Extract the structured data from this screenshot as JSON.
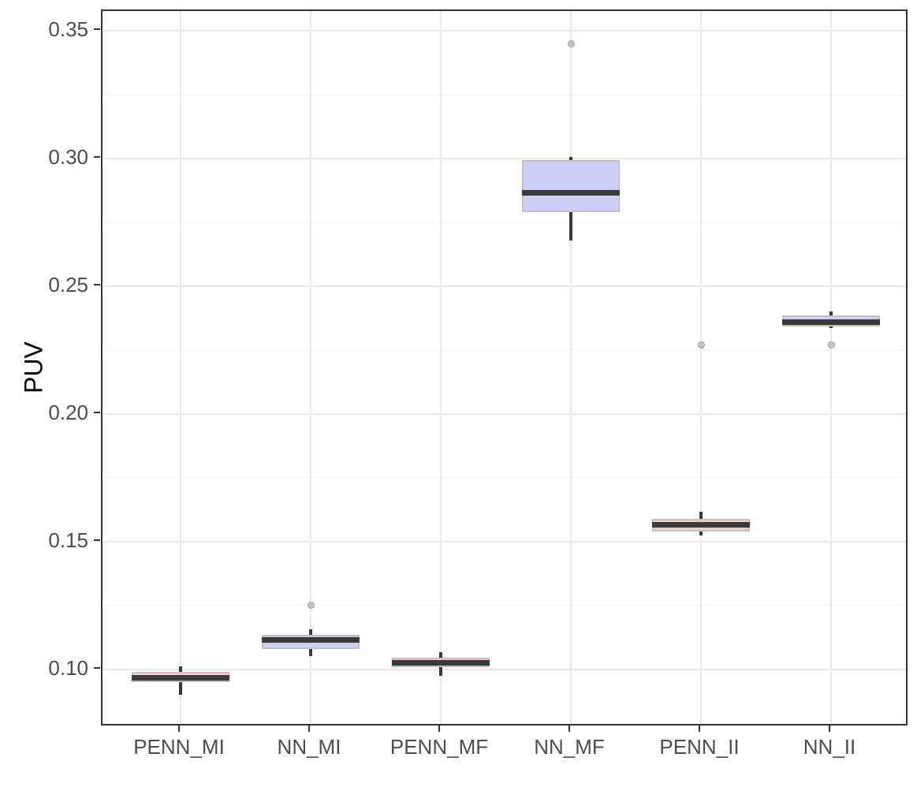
{
  "figure": {
    "background": "#FFFFFF",
    "panel_border_color": "#333333",
    "grid_major_color": "#E9E9E9",
    "grid_minor_color": "#F4F4F4",
    "axis_text_color": "#4D4D4D",
    "axis_title_color": "#000000",
    "box_border_color": "#C2C2C2",
    "median_color": "#3A3A3A",
    "whisker_color": "#3A3A3A",
    "outlier_fill": "#C4C4C4",
    "outlier_stroke": "#9E9E9E"
  },
  "chart_data": {
    "type": "boxplot",
    "title": "",
    "xlabel": "",
    "ylabel": "PUV",
    "legend_position": "none",
    "grid": true,
    "categories": [
      "PENN_MI",
      "NN_MI",
      "PENN_MF",
      "NN_MF",
      "PENN_II",
      "NN_II"
    ],
    "y_tick_values": [
      0.1,
      0.15,
      0.2,
      0.25,
      0.3,
      0.35
    ],
    "y_minor_tick_values": [
      0.125,
      0.175,
      0.225,
      0.275,
      0.325
    ],
    "ylim": [
      0.0773,
      0.3578
    ],
    "fill_colors": {
      "PENN": "#F9C8C6",
      "NN": "#CDCDF5"
    },
    "series": [
      {
        "category": "PENN_MI",
        "fill": "#F9C8C6",
        "whisker_low": 0.09,
        "q1": 0.0948,
        "median": 0.0965,
        "q3": 0.099,
        "whisker_high": 0.101,
        "outliers": []
      },
      {
        "category": "NN_MI",
        "fill": "#CDCDF5",
        "whisker_low": 0.105,
        "q1": 0.108,
        "median": 0.1115,
        "q3": 0.1135,
        "whisker_high": 0.1155,
        "outliers": [
          0.125
        ]
      },
      {
        "category": "PENN_MF",
        "fill": "#F9C8C6",
        "whisker_low": 0.0975,
        "q1": 0.1008,
        "median": 0.1026,
        "q3": 0.1045,
        "whisker_high": 0.1065,
        "outliers": []
      },
      {
        "category": "NN_MF",
        "fill": "#CDCDF5",
        "whisker_low": 0.268,
        "q1": 0.279,
        "median": 0.2865,
        "q3": 0.2995,
        "whisker_high": 0.3005,
        "outliers": [
          0.345
        ]
      },
      {
        "category": "PENN_II",
        "fill": "#F9C8C6",
        "whisker_low": 0.1525,
        "q1": 0.1538,
        "median": 0.1565,
        "q3": 0.159,
        "whisker_high": 0.1615,
        "outliers": [
          0.227
        ]
      },
      {
        "category": "NN_II",
        "fill": "#CDCDF5",
        "whisker_low": 0.2335,
        "q1": 0.2343,
        "median": 0.236,
        "q3": 0.2386,
        "whisker_high": 0.24,
        "outliers": [
          0.227
        ]
      }
    ]
  }
}
